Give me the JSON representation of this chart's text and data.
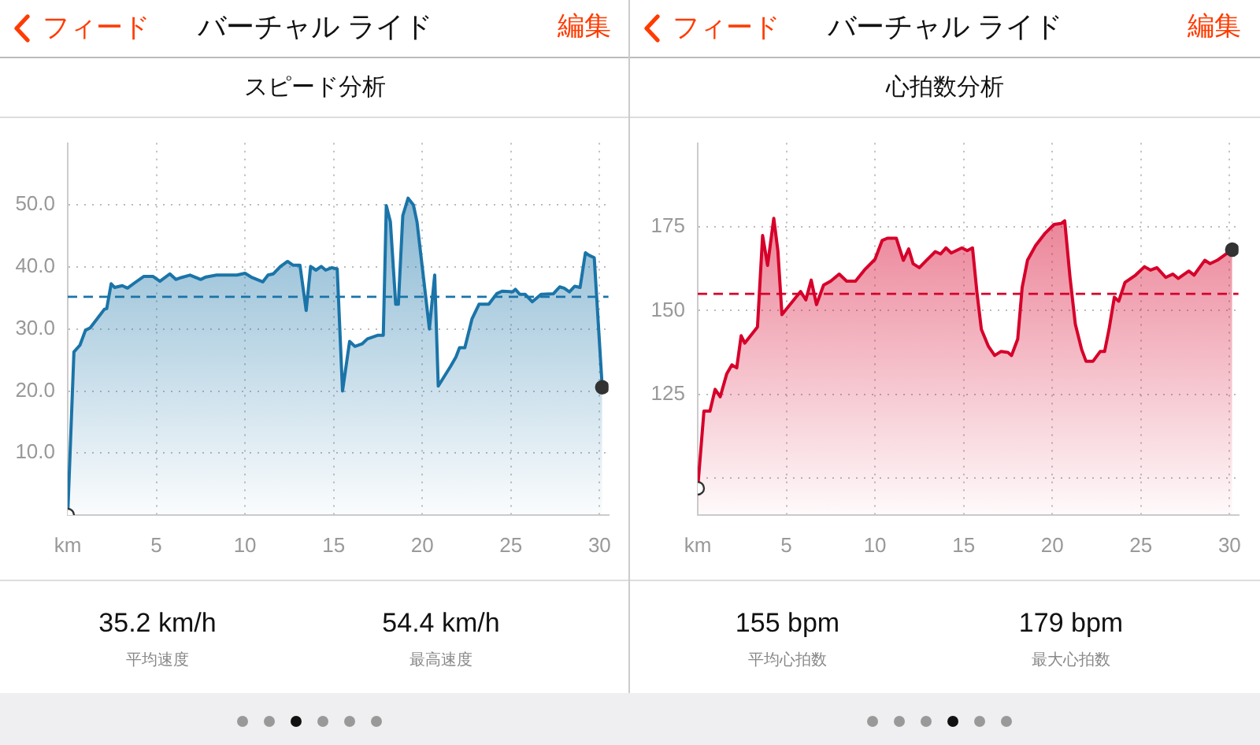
{
  "chart_data": [
    {
      "type": "area",
      "title": "スピード分析",
      "x": [
        0,
        0.35,
        0.69,
        1.0,
        1.27,
        2.07,
        2.2,
        2.45,
        2.65,
        3.08,
        3.37,
        3.8,
        4.3,
        4.8,
        5.2,
        5.76,
        6.1,
        6.4,
        6.9,
        7.5,
        7.8,
        8.4,
        9.55,
        10,
        10.4,
        11,
        11.3,
        11.6,
        12,
        12.4,
        12.7,
        13.1,
        13.45,
        13.7,
        14.0,
        14.3,
        14.55,
        14.9,
        15.2,
        15.5,
        15.9,
        16.2,
        16.6,
        16.9,
        17.5,
        17.8,
        17.97,
        18.2,
        18.5,
        18.65,
        18.9,
        19.2,
        19.5,
        19.7,
        20.1,
        20.4,
        20.7,
        20.9,
        21.6,
        21.9,
        22.1,
        22.4,
        22.8,
        23.2,
        23.75,
        24.2,
        24.5,
        25.1,
        25.25,
        25.5,
        25.8,
        26.2,
        26.7,
        27.4,
        27.75,
        28,
        28.3,
        28.6,
        28.9,
        29.2,
        29.4,
        29.7,
        30.15
      ],
      "series": [
        {
          "color": "#1a74a8",
          "values": [
            0,
            26.3,
            27.4,
            29.8,
            30.2,
            33.2,
            33.3,
            37.3,
            36.7,
            37,
            36.6,
            37.5,
            38.5,
            38.5,
            37.7,
            38.9,
            38,
            38.3,
            38.7,
            38,
            38.4,
            38.7,
            38.7,
            39,
            38.3,
            37.6,
            38.7,
            38.9,
            40.1,
            40.9,
            40.3,
            40.3,
            33,
            40.1,
            39.5,
            40.1,
            39.5,
            39.9,
            39.7,
            20,
            28,
            27.2,
            27.6,
            28.4,
            29,
            29,
            49.9,
            47.3,
            34,
            34,
            48.3,
            51.1,
            50,
            47.3,
            37.5,
            30,
            38.7,
            20.8,
            24,
            25.5,
            27,
            27,
            31.6,
            34,
            34,
            35.7,
            36.1,
            36,
            36.4,
            35.6,
            35.6,
            34.4,
            35.6,
            35.7,
            36.8,
            36.6,
            36,
            36.9,
            36.7,
            42.3,
            41.9,
            41.5,
            20.6
          ]
        }
      ],
      "xlim": [
        0,
        30.5
      ],
      "ylim": [
        0,
        60
      ],
      "xticks": [
        {
          "value": 0,
          "label": "km"
        },
        5,
        10,
        15,
        20,
        25,
        30
      ],
      "yticks": [
        {
          "value": 0,
          "label": null
        },
        {
          "value": 10,
          "label": "10.0"
        },
        {
          "value": 20,
          "label": "20.0"
        },
        {
          "value": 30,
          "label": "30.0"
        },
        {
          "value": 40,
          "label": "40.0"
        },
        {
          "value": 50,
          "label": "50.0"
        }
      ],
      "grid": true,
      "legend": false,
      "ref_lines": [
        {
          "axis": "y",
          "value": 35.2,
          "color": "#1a74a8",
          "line_style": "dashed"
        }
      ],
      "annotations": [
        "フィード",
        "バーチャル ライド",
        "編集",
        "35.2 km/h",
        "平均速度",
        "54.4 km/h",
        "最高速度"
      ]
    },
    {
      "type": "area",
      "title": "心拍数分析",
      "x": [
        0,
        0.35,
        0.69,
        0.98,
        1.27,
        1.64,
        1.93,
        2.2,
        2.45,
        2.65,
        3.37,
        3.66,
        3.94,
        4.29,
        4.52,
        4.75,
        5.8,
        6.1,
        6.4,
        6.7,
        7.1,
        7.5,
        7.98,
        8.4,
        8.9,
        9.4,
        10,
        10.4,
        10.7,
        11.2,
        11.6,
        11.9,
        12.15,
        12.5,
        12.9,
        13.4,
        13.7,
        14.0,
        14.3,
        14.9,
        15.2,
        15.5,
        15.75,
        16.0,
        16.4,
        16.75,
        17.1,
        17.5,
        17.7,
        18.05,
        18.3,
        18.6,
        19.06,
        19.6,
        20.1,
        20.5,
        20.7,
        21.0,
        21.3,
        21.65,
        21.9,
        22.3,
        22.7,
        22.95,
        23.2,
        23.5,
        23.75,
        24.1,
        24.7,
        25.2,
        25.55,
        25.9,
        26.4,
        26.8,
        27.1,
        27.7,
        28,
        28.6,
        28.9,
        29.3,
        30.15
      ],
      "series": [
        {
          "color": "#d6002a",
          "values": [
            97,
            120,
            120,
            126.5,
            124.3,
            131.2,
            133.8,
            132.9,
            142.5,
            140.3,
            145.1,
            172.4,
            163.5,
            177.5,
            167.9,
            148.8,
            155.7,
            153.2,
            159.1,
            151.8,
            157.6,
            158.8,
            160.9,
            158.8,
            158.8,
            162.1,
            165.3,
            170.9,
            171.6,
            171.6,
            165,
            168.4,
            164,
            162.8,
            165,
            167.6,
            166.9,
            168.7,
            167.2,
            168.7,
            167.9,
            168.7,
            155.4,
            144.4,
            139.3,
            136.6,
            137.8,
            137.5,
            136.6,
            141.5,
            156.9,
            165,
            169.4,
            173.1,
            175.7,
            176,
            176.8,
            159.9,
            145.9,
            138.5,
            134.9,
            134.9,
            137.8,
            137.8,
            144.4,
            154,
            152.8,
            158.4,
            160.6,
            163.1,
            162.1,
            162.8,
            159.9,
            160.9,
            159.6,
            161.8,
            160.6,
            165,
            164,
            165,
            168.2
          ]
        }
      ],
      "xlim": [
        0,
        30.5
      ],
      "ylim": [
        89,
        200
      ],
      "xticks": [
        {
          "value": 0,
          "label": "km"
        },
        5,
        10,
        15,
        20,
        25,
        30
      ],
      "yticks": [
        {
          "value": 100,
          "label": null
        },
        125,
        150,
        175
      ],
      "grid": true,
      "legend": false,
      "ref_lines": [
        {
          "axis": "y",
          "value": 155,
          "color": "#d6002a",
          "line_style": "dashed"
        }
      ],
      "annotations": [
        "フィード",
        "バーチャル ライド",
        "編集",
        "155 bpm",
        "平均心拍数",
        "179 bpm",
        "最大心拍数"
      ]
    }
  ]
}
